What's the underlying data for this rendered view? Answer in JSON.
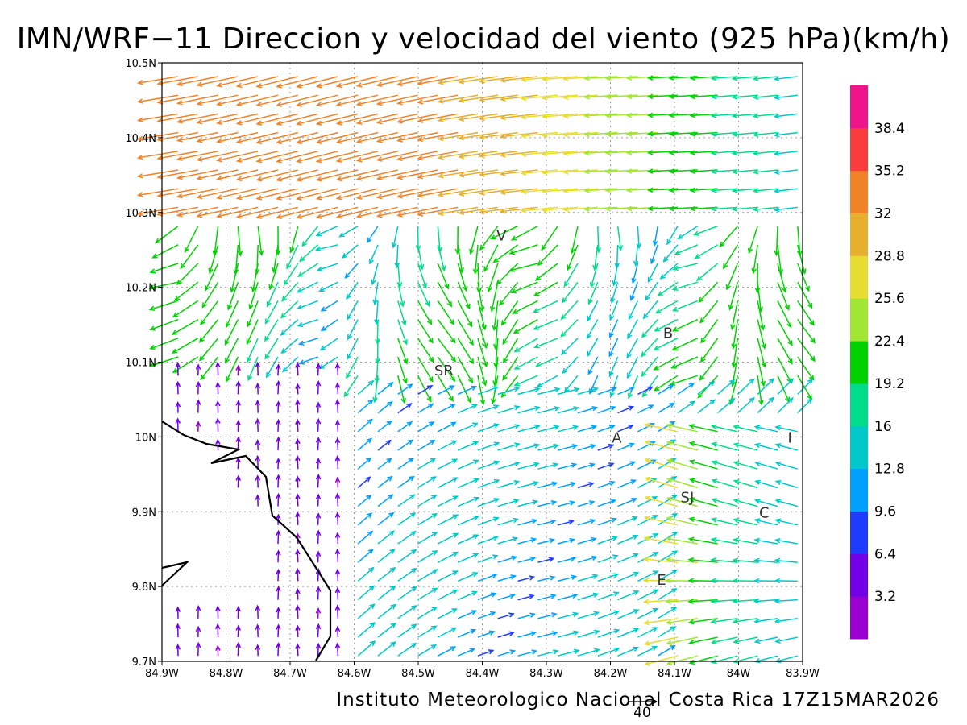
{
  "title": "IMN/WRF−11 Direccion y velocidad del viento (925 hPa)(km/h)",
  "credit": "Instituto Meteorologico Nacional Costa Rica 17Z15MAR2026",
  "reference_vector_label": "40",
  "map": {
    "lon_range": [
      -84.9,
      -83.9
    ],
    "lat_range": [
      9.7,
      10.5
    ],
    "x_tick_labels": [
      "84.9W",
      "84.8W",
      "84.7W",
      "84.6W",
      "84.5W",
      "84.4W",
      "84.3W",
      "84.2W",
      "84.1W",
      "84W",
      "83.9W"
    ],
    "y_tick_labels": [
      "9.7N",
      "9.8N",
      "9.9N",
      "10N",
      "10.1N",
      "10.2N",
      "10.3N",
      "10.4N",
      "10.5N"
    ],
    "places": [
      {
        "label": "V",
        "lon": -84.37,
        "lat": 10.27
      },
      {
        "label": "B",
        "lon": -84.11,
        "lat": 10.14
      },
      {
        "label": "SR",
        "lon": -84.46,
        "lat": 10.09
      },
      {
        "label": "A",
        "lon": -84.19,
        "lat": 10.0
      },
      {
        "label": "I",
        "lon": -83.92,
        "lat": 10.0
      },
      {
        "label": "SJ",
        "lon": -84.08,
        "lat": 9.92
      },
      {
        "label": "C",
        "lon": -83.96,
        "lat": 9.9
      },
      {
        "label": "E",
        "lon": -84.12,
        "lat": 9.81
      }
    ]
  },
  "colorbar": {
    "colors": [
      "#9a00d2",
      "#7200e6",
      "#1e3cff",
      "#00a0ff",
      "#00c8c8",
      "#00dc8c",
      "#00d200",
      "#a0e632",
      "#e6dc32",
      "#e6af2d",
      "#f08228",
      "#fa3c3c",
      "#f0148c"
    ],
    "labels": [
      "3.2",
      "6.4",
      "9.6",
      "12.8",
      "16",
      "19.2",
      "22.4",
      "25.6",
      "28.8",
      "32",
      "35.2",
      "38.4"
    ]
  }
}
